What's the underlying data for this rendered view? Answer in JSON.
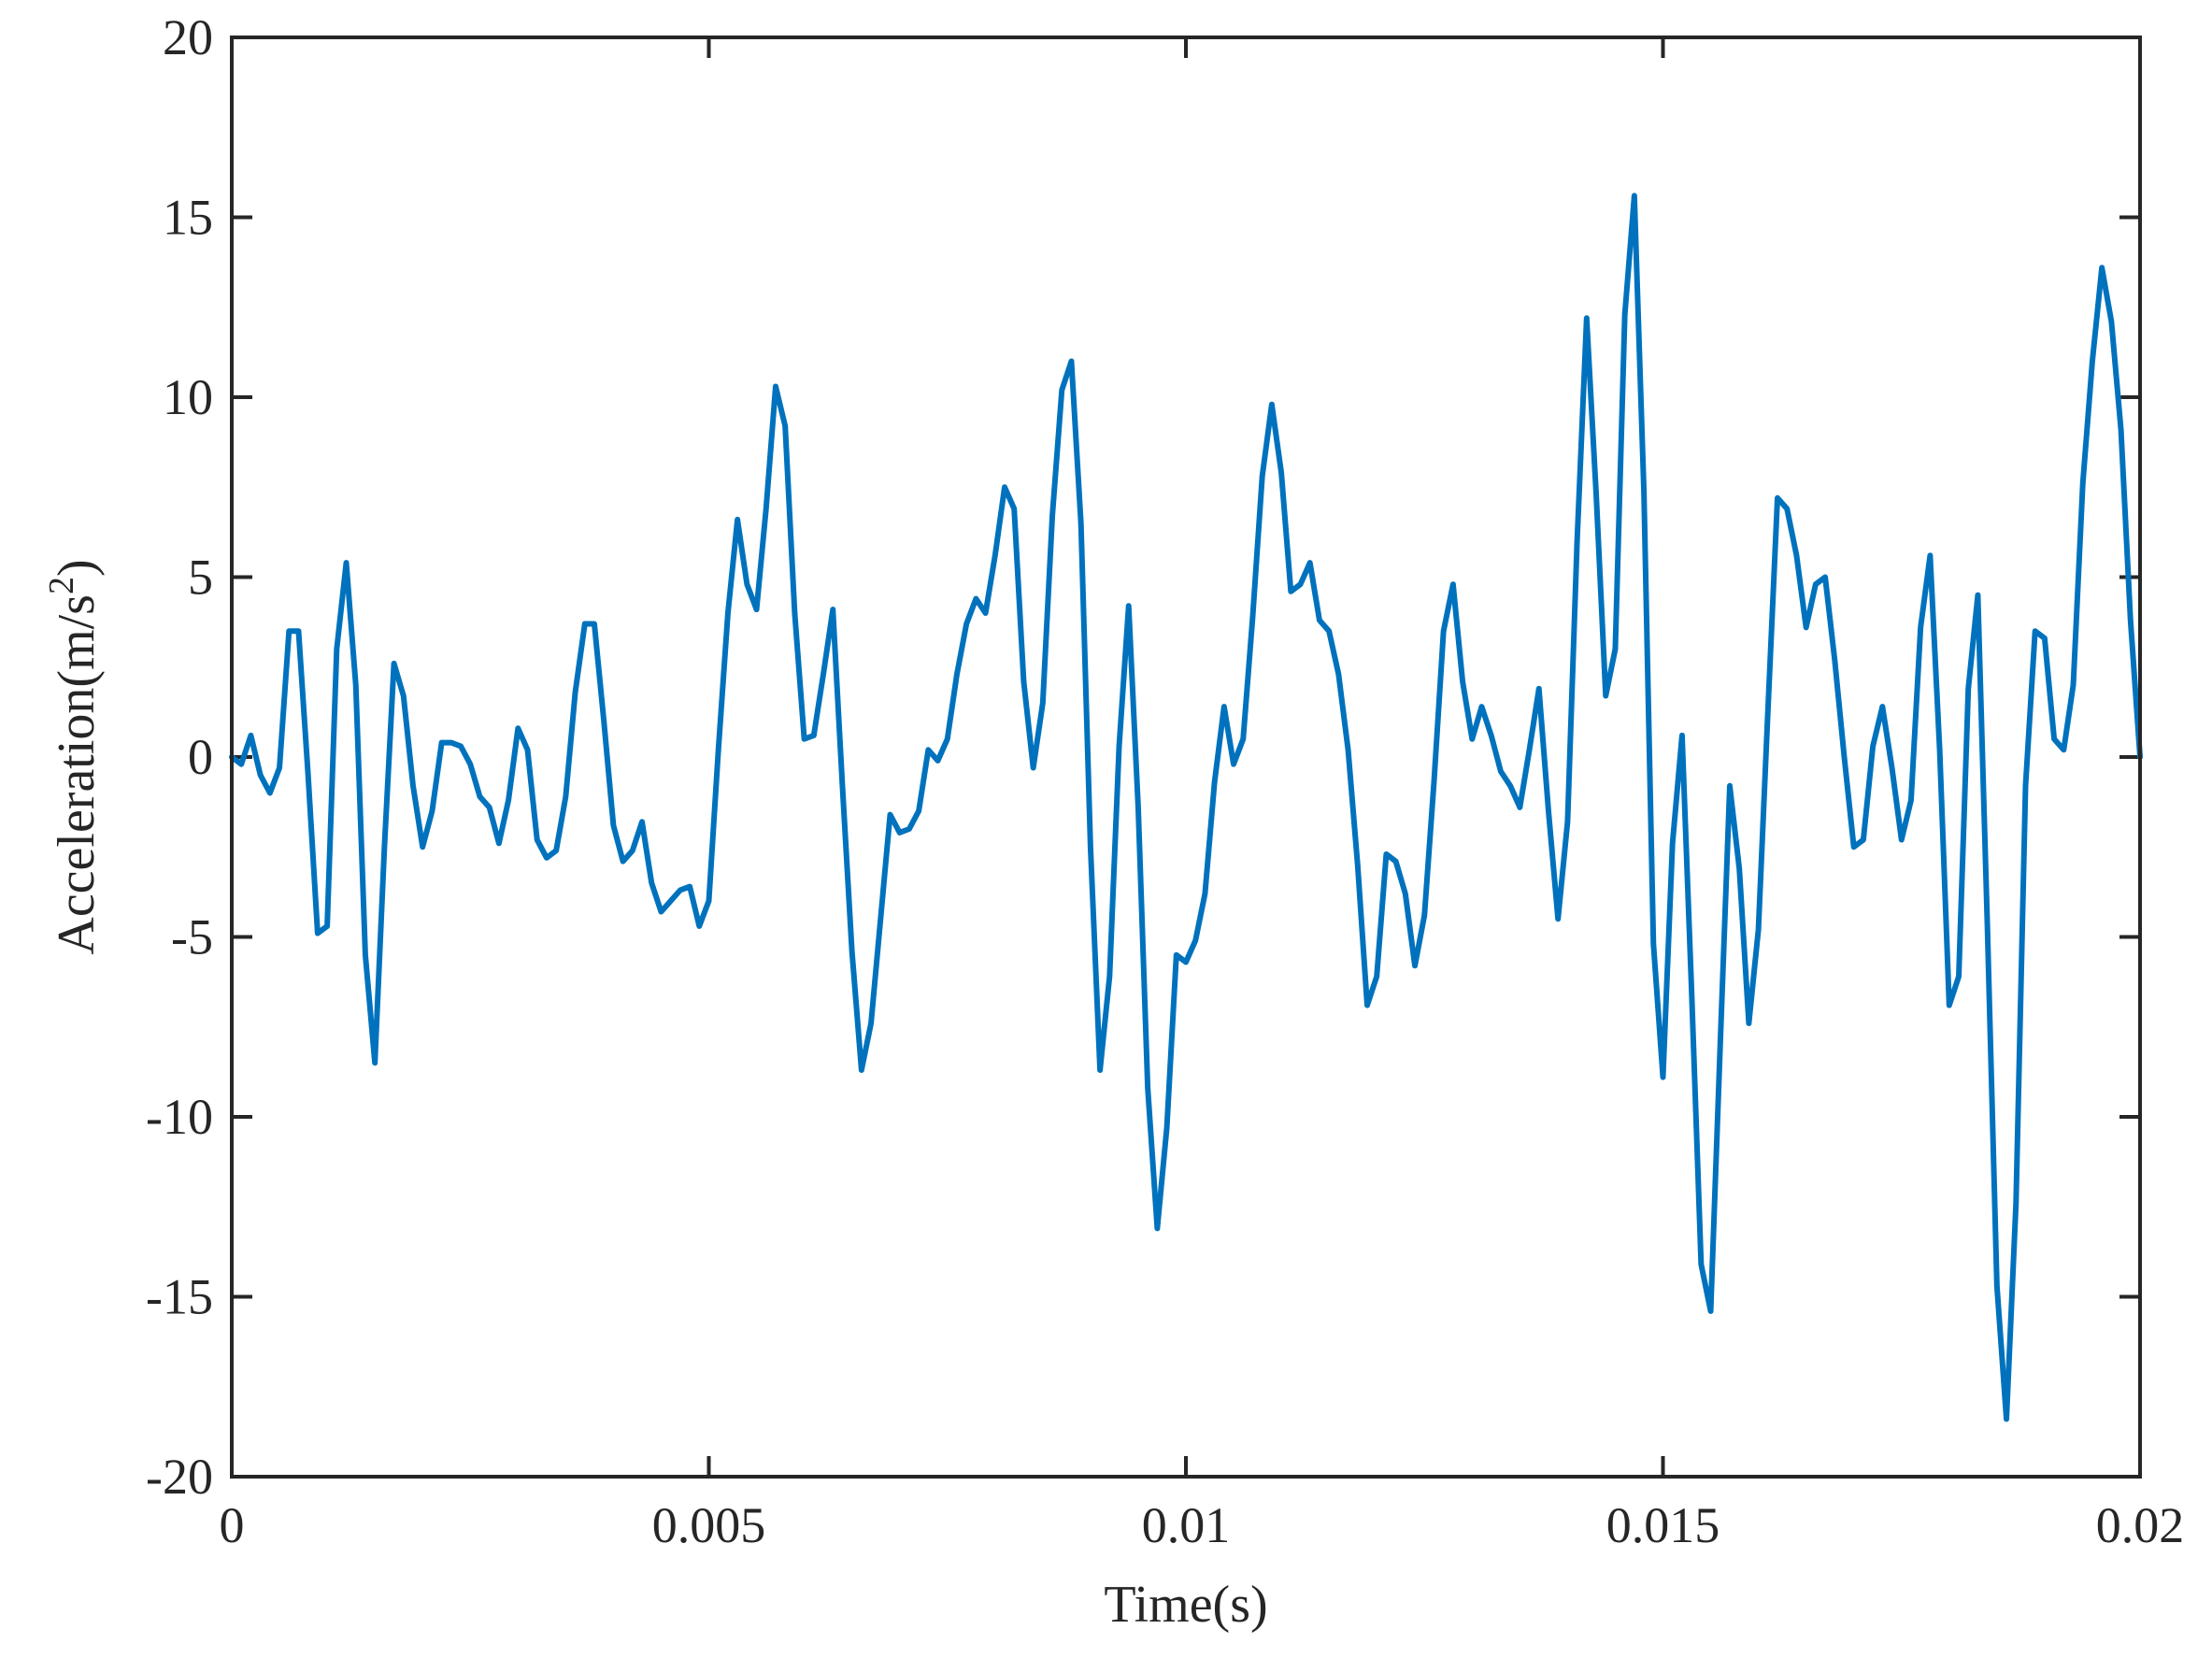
{
  "chart_data": {
    "type": "line",
    "title": "",
    "xlabel": "Time(s)",
    "ylabel_parts": {
      "main": "Acceleration(m/s",
      "superscript": "2",
      "close": ")"
    },
    "xlim": [
      0,
      0.02
    ],
    "ylim": [
      -20,
      20
    ],
    "xticks": [
      0,
      0.005,
      0.01,
      0.015,
      0.02
    ],
    "xtick_labels": [
      "0",
      "0.005",
      "0.01",
      "0.015",
      "0.02"
    ],
    "yticks": [
      -20,
      -15,
      -10,
      -5,
      0,
      5,
      10,
      15,
      20
    ],
    "ytick_labels": [
      "-20",
      "-15",
      "-10",
      "-5",
      "0",
      "5",
      "10",
      "15",
      "20"
    ],
    "grid": false,
    "line_color": "#0072BD",
    "series": [
      {
        "x": [
          0.0,
          0.0001,
          0.0002,
          0.0003,
          0.0004,
          0.0005,
          0.0006,
          0.0007,
          0.0008,
          0.0009,
          0.001,
          0.0011,
          0.0012,
          0.0013,
          0.0014,
          0.0015,
          0.0016,
          0.0017,
          0.0018,
          0.0019,
          0.002,
          0.0021,
          0.0022,
          0.0023,
          0.0024,
          0.0025,
          0.0026,
          0.0027,
          0.0028,
          0.0029,
          0.003,
          0.0031,
          0.0032,
          0.0033,
          0.0034,
          0.0035,
          0.0036,
          0.0037,
          0.0038,
          0.0039,
          0.004,
          0.0041,
          0.0042,
          0.0043,
          0.0044,
          0.0045,
          0.0046,
          0.0047,
          0.0048,
          0.0049,
          0.005,
          0.0051,
          0.0052,
          0.0053,
          0.0054,
          0.0055,
          0.0056,
          0.0057,
          0.0058,
          0.0059,
          0.006,
          0.0061,
          0.0062,
          0.0063,
          0.0064,
          0.0065,
          0.0066,
          0.0067,
          0.0068,
          0.0069,
          0.007,
          0.0071,
          0.0072,
          0.0073,
          0.0074,
          0.0075,
          0.0076,
          0.0077,
          0.0078,
          0.0079,
          0.008,
          0.0081,
          0.0082,
          0.0083,
          0.0084,
          0.0085,
          0.0086,
          0.0087,
          0.0088,
          0.0089,
          0.009,
          0.0091,
          0.0092,
          0.0093,
          0.0094,
          0.0095,
          0.0096,
          0.0097,
          0.0098,
          0.0099,
          0.01,
          0.0101,
          0.0102,
          0.0103,
          0.0104,
          0.0105,
          0.0106,
          0.0107,
          0.0108,
          0.0109,
          0.011,
          0.0111,
          0.0112,
          0.0113,
          0.0114,
          0.0115,
          0.0116,
          0.0117,
          0.0118,
          0.0119,
          0.012,
          0.0121,
          0.0122,
          0.0123,
          0.0124,
          0.0125,
          0.0126,
          0.0127,
          0.0128,
          0.0129,
          0.013,
          0.0131,
          0.0132,
          0.0133,
          0.0134,
          0.0135,
          0.0136,
          0.0137,
          0.0138,
          0.0139,
          0.014,
          0.0141,
          0.0142,
          0.0143,
          0.0144,
          0.0145,
          0.0146,
          0.0147,
          0.0148,
          0.0149,
          0.015,
          0.0151,
          0.0152,
          0.0153,
          0.0154,
          0.0155,
          0.0156,
          0.0157,
          0.0158,
          0.0159,
          0.016,
          0.0161,
          0.0162,
          0.0163,
          0.0164,
          0.0165,
          0.0166,
          0.0167,
          0.0168,
          0.0169,
          0.017,
          0.0171,
          0.0172,
          0.0173,
          0.0174,
          0.0175,
          0.0176,
          0.0177,
          0.0178,
          0.0179,
          0.018,
          0.0181,
          0.0182,
          0.0183,
          0.0184,
          0.0185,
          0.0186,
          0.0187,
          0.0188,
          0.0189,
          0.019,
          0.0191,
          0.0192,
          0.0193,
          0.0194,
          0.0195,
          0.0196,
          0.0197,
          0.0198,
          0.0199,
          0.02
        ],
        "y": [
          0.0,
          -0.2,
          0.6,
          -0.5,
          -1.0,
          -0.3,
          3.5,
          3.5,
          -0.5,
          -4.9,
          -4.7,
          3.0,
          5.4,
          2.0,
          -5.5,
          -8.5,
          -2.5,
          2.6,
          1.7,
          -0.8,
          -2.5,
          -1.5,
          0.4,
          0.4,
          0.3,
          -0.2,
          -1.1,
          -1.4,
          -2.4,
          -1.2,
          0.8,
          0.2,
          -2.3,
          -2.8,
          -2.6,
          -1.1,
          1.8,
          3.7,
          3.7,
          1.0,
          -1.9,
          -2.9,
          -2.6,
          -1.8,
          -3.5,
          -4.3,
          -4.0,
          -3.7,
          -3.6,
          -4.7,
          -4.0,
          0.2,
          4.0,
          6.6,
          4.8,
          4.1,
          6.9,
          10.3,
          9.2,
          4.0,
          0.5,
          0.6,
          2.3,
          4.1,
          -0.8,
          -5.4,
          -8.7,
          -7.4,
          -4.5,
          -1.6,
          -2.1,
          -2.0,
          -1.5,
          0.2,
          -0.1,
          0.5,
          2.3,
          3.7,
          4.4,
          4.0,
          5.6,
          7.5,
          6.9,
          2.1,
          -0.3,
          1.5,
          6.7,
          10.2,
          11.0,
          6.5,
          -2.5,
          -8.7,
          -6.1,
          0.3,
          4.2,
          -1.4,
          -9.2,
          -13.1,
          -10.3,
          -5.5,
          -5.7,
          -5.1,
          -3.8,
          -0.7,
          1.4,
          -0.2,
          0.5,
          3.9,
          7.8,
          9.8,
          7.9,
          4.6,
          4.8,
          5.4,
          3.8,
          3.5,
          2.3,
          0.2,
          -3.0,
          -6.9,
          -6.1,
          -2.7,
          -2.9,
          -3.8,
          -5.8,
          -4.4,
          -0.7,
          3.5,
          4.8,
          2.1,
          0.5,
          1.4,
          0.6,
          -0.4,
          -0.8,
          -1.4,
          0.2,
          1.9,
          -1.5,
          -4.5,
          -1.8,
          6.0,
          12.2,
          7.3,
          1.7,
          3.0,
          12.3,
          15.6,
          7.4,
          -5.2,
          -8.9,
          -2.4,
          0.6,
          -6.5,
          -14.1,
          -15.4,
          -8.0,
          -0.8,
          -3.1,
          -7.4,
          -4.8,
          1.3,
          7.2,
          6.9,
          5.6,
          3.6,
          4.8,
          5.0,
          2.7,
          0.0,
          -2.5,
          -2.3,
          0.3,
          1.4,
          -0.3,
          -2.3,
          -1.2,
          3.6,
          5.6,
          0.2,
          -6.9,
          -6.1,
          1.9,
          4.5,
          -4.7,
          -14.7,
          -18.4,
          -12.4,
          -0.8,
          3.5,
          3.3,
          0.5,
          0.2,
          2.0,
          7.6,
          11.0,
          13.6,
          12.1,
          9.1,
          3.8,
          0.0
        ]
      }
    ]
  }
}
